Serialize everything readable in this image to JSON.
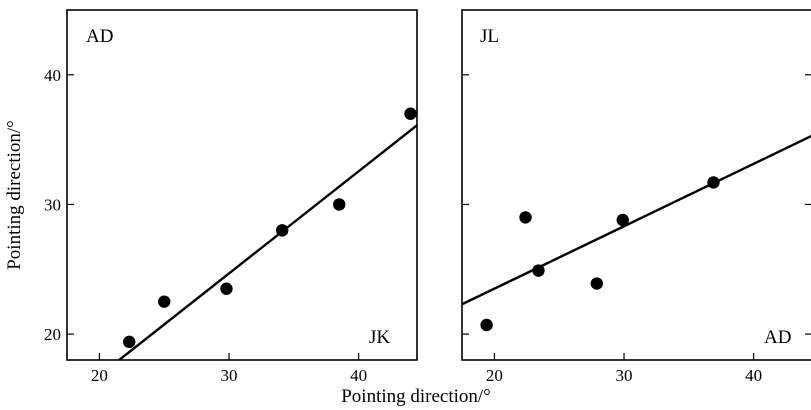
{
  "x_axis_label": "Pointing direction/°",
  "y_axis_label": "Pointing direction/°",
  "chart_data": [
    {
      "type": "scatter",
      "corner_labels": [
        "AD",
        "JK"
      ],
      "xlim": [
        17.5,
        44.5
      ],
      "ylim": [
        18,
        45
      ],
      "xticks": [
        20,
        30,
        40
      ],
      "yticks": [
        20,
        30,
        40
      ],
      "points": [
        {
          "x": 22.3,
          "y": 19.4
        },
        {
          "x": 25.0,
          "y": 22.5
        },
        {
          "x": 29.8,
          "y": 23.5
        },
        {
          "x": 34.1,
          "y": 28.0
        },
        {
          "x": 38.5,
          "y": 30.0
        },
        {
          "x": 44.0,
          "y": 37.0
        }
      ],
      "fit_line": [
        [
          20.0,
          16.8
        ],
        [
          45.0,
          36.5
        ]
      ]
    },
    {
      "type": "scatter",
      "corner_labels": [
        "JL",
        "AD"
      ],
      "xlim": [
        17.5,
        44.5
      ],
      "ylim": [
        18,
        45
      ],
      "xticks": [
        20,
        30,
        40
      ],
      "yticks": [
        20,
        30,
        40
      ],
      "points": [
        {
          "x": 19.4,
          "y": 20.7
        },
        {
          "x": 22.4,
          "y": 29.0
        },
        {
          "x": 23.4,
          "y": 24.9
        },
        {
          "x": 27.9,
          "y": 23.9
        },
        {
          "x": 29.9,
          "y": 28.8
        },
        {
          "x": 36.9,
          "y": 31.7
        }
      ],
      "fit_line": [
        [
          17.5,
          22.3
        ],
        [
          44.5,
          35.3
        ]
      ]
    }
  ]
}
